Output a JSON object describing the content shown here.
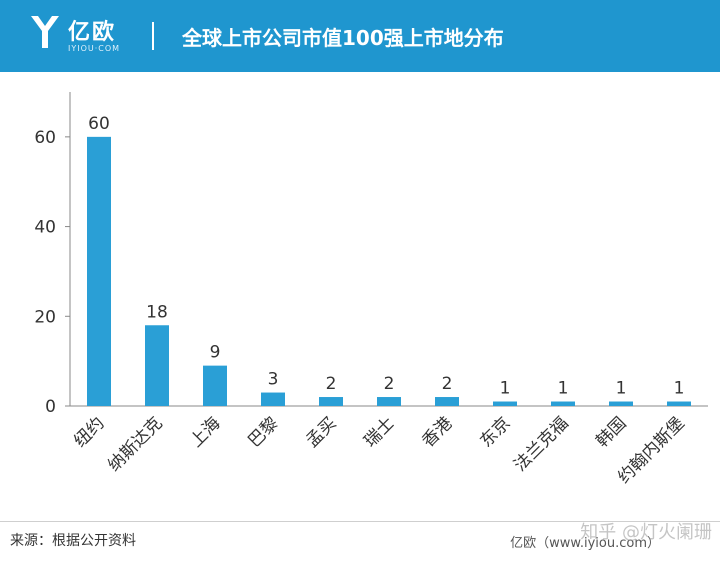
{
  "header": {
    "logo_text": "亿欧",
    "logo_sub": "IYIOU·COM",
    "title": "全球上市公司市值100强上市地分布"
  },
  "chart_data": {
    "type": "bar",
    "categories": [
      "纽约",
      "纳斯达克",
      "上海",
      "巴黎",
      "孟买",
      "瑞士",
      "香港",
      "东京",
      "法兰克福",
      "韩国",
      "约翰内斯堡"
    ],
    "values": [
      60,
      18,
      9,
      3,
      2,
      2,
      2,
      1,
      1,
      1,
      1
    ],
    "value_labels": [
      "60",
      "18",
      "9",
      "3",
      "2",
      "2",
      "2",
      "1",
      "1",
      "1",
      "1"
    ],
    "ylim": [
      0,
      70
    ],
    "yticks": [
      0,
      20,
      40,
      60
    ],
    "ytick_labels": [
      "0",
      "20",
      "40",
      "60"
    ],
    "grid": false,
    "bar_color": "#2a9fd6"
  },
  "footer": {
    "source": "来源：根据公开资料",
    "site": "亿欧（www.iyiou.com）",
    "watermark": "知乎 @灯火阑珊"
  }
}
